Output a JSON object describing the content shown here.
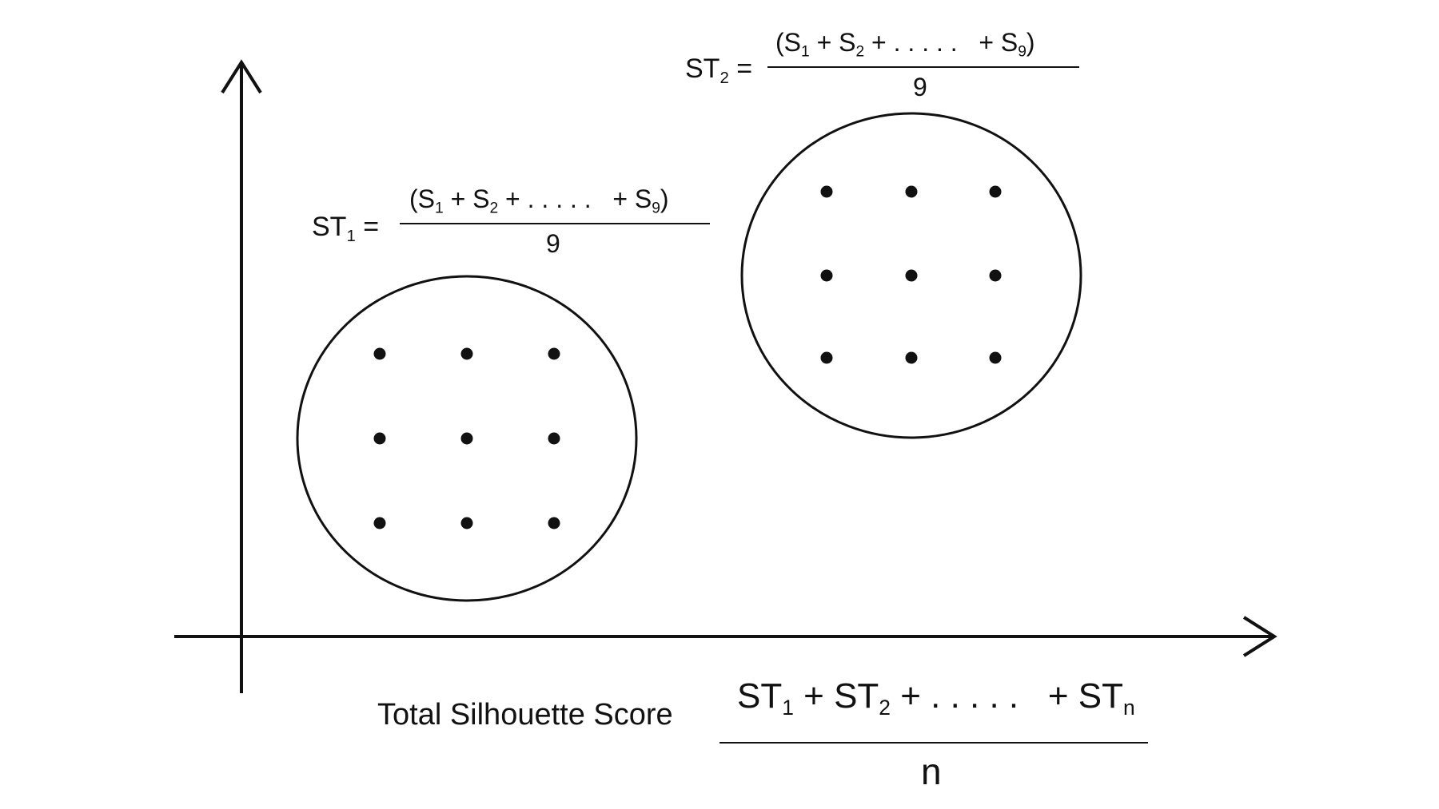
{
  "colors": {
    "ink": "#111111",
    "background": "#ffffff"
  },
  "cluster1": {
    "formula": {
      "lhs_main": "ST",
      "lhs_sub": "1",
      "lhs_eq": "=",
      "numerator": {
        "open": "(S",
        "s1_sub": "1",
        "plus1": " + S",
        "s2_sub": "2",
        "dots": " + . . . . .   + S",
        "s9_sub": "9",
        "close": ")"
      },
      "denominator": "9"
    },
    "point_count": 9
  },
  "cluster2": {
    "formula": {
      "lhs_main": "ST",
      "lhs_sub": "2",
      "lhs_eq": "=",
      "numerator": {
        "open": "(S",
        "s1_sub": "1",
        "plus1": " + S",
        "s2_sub": "2",
        "dots": " + . . . . .   + S",
        "s9_sub": "9",
        "close": ")"
      },
      "denominator": "9"
    },
    "point_count": 9
  },
  "total": {
    "label": "Total Silhouette Score",
    "numerator": {
      "t1": "ST",
      "t1_sub": "1",
      "plus": " + ST",
      "t2_sub": "2",
      "dots": " + . . . . .   + ST",
      "tn_sub": "n"
    },
    "denominator": "n"
  }
}
